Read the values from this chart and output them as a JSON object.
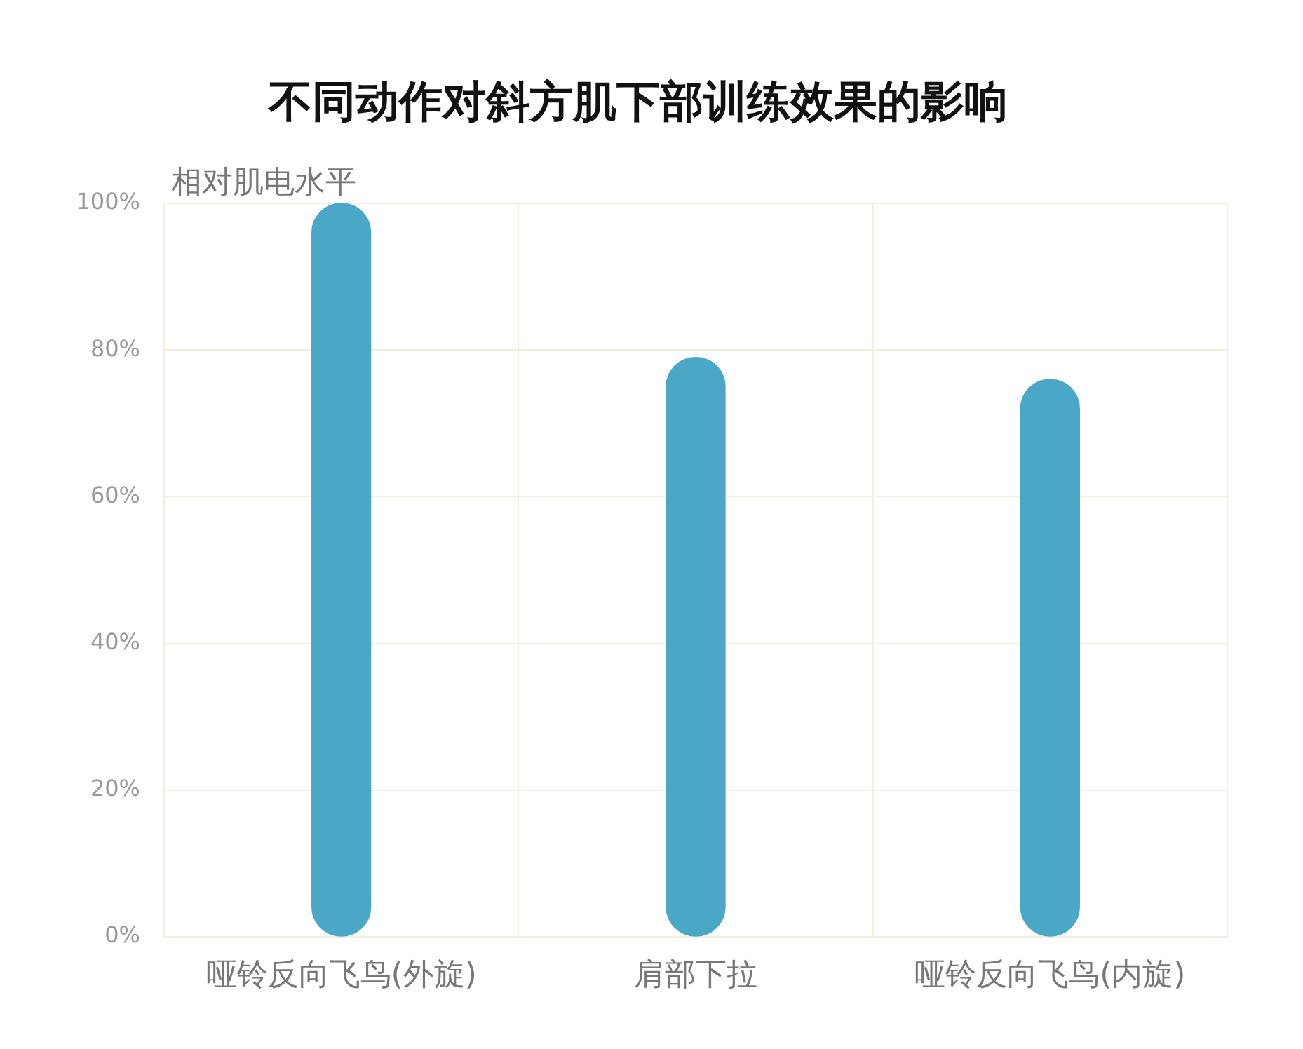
{
  "chart_data": {
    "type": "bar",
    "title": "不同动作对斜方肌下部训练效果的影响",
    "ylabel": "相对肌电水平",
    "categories": [
      "哑铃反向飞鸟(外旋)",
      "肩部下拉",
      "哑铃反向飞鸟(内旋)"
    ],
    "values": [
      100,
      79,
      76
    ],
    "color": "#4aa8c6",
    "ylim": [
      0,
      100
    ],
    "yticks": [
      {
        "value": 0,
        "label": "0%"
      },
      {
        "value": 20,
        "label": "20%"
      },
      {
        "value": 40,
        "label": "40%"
      },
      {
        "value": 60,
        "label": "60%"
      },
      {
        "value": 80,
        "label": "80%"
      },
      {
        "value": 100,
        "label": "100%"
      }
    ],
    "grid": true
  }
}
